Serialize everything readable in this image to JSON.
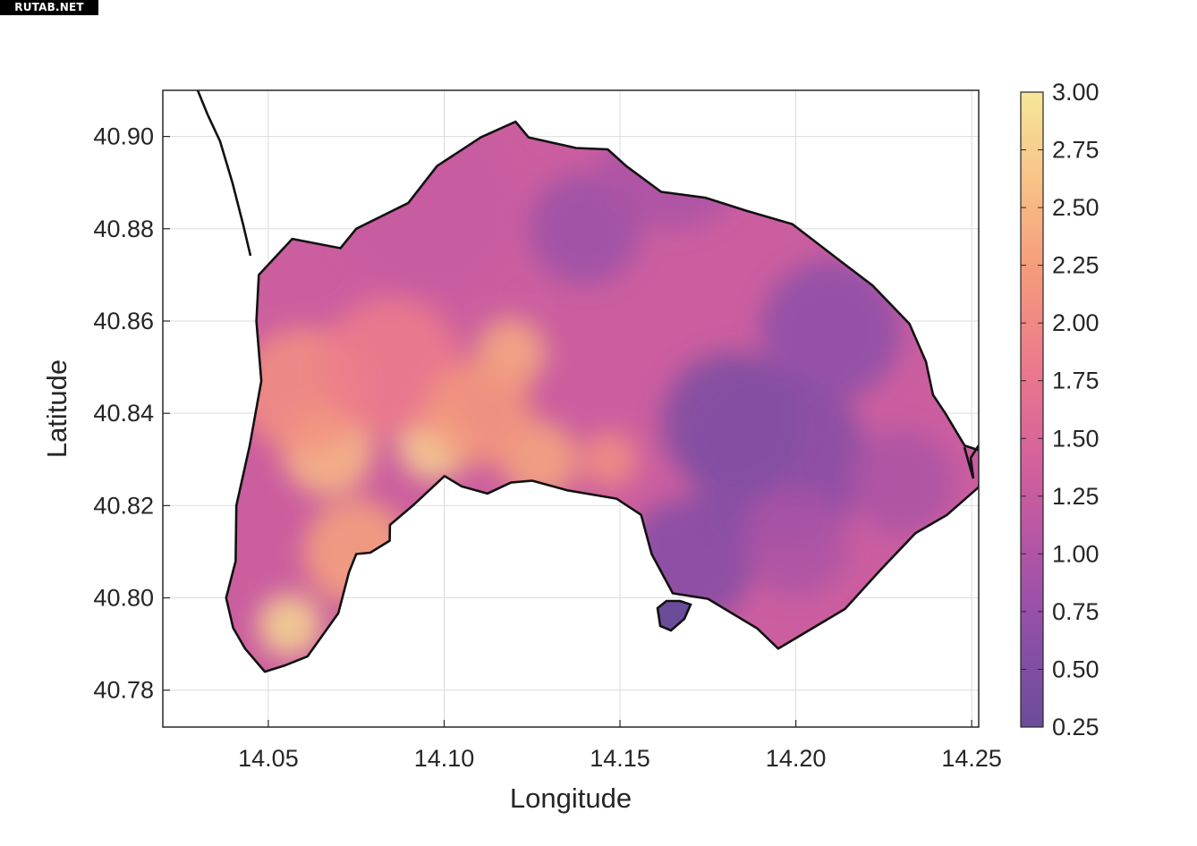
{
  "watermark": "RUTAB.NET",
  "chart_data": {
    "type": "heatmap",
    "title": "",
    "xlabel": "Longitude",
    "ylabel": "Latitude",
    "xlim": [
      14.02,
      14.252
    ],
    "ylim": [
      40.772,
      40.91
    ],
    "xticks": [
      14.05,
      14.1,
      14.15,
      14.2,
      14.25
    ],
    "xtick_labels": [
      "14.05",
      "14.10",
      "14.15",
      "14.20",
      "14.25"
    ],
    "yticks": [
      40.78,
      40.8,
      40.82,
      40.84,
      40.86,
      40.88,
      40.9
    ],
    "ytick_labels": [
      "40.78",
      "40.80",
      "40.82",
      "40.84",
      "40.86",
      "40.88",
      "40.90"
    ],
    "grid": true,
    "colorbar": {
      "min": 0.25,
      "max": 3.0,
      "ticks": [
        0.25,
        0.5,
        0.75,
        1.0,
        1.25,
        1.5,
        1.75,
        2.0,
        2.25,
        2.5,
        2.75,
        3.0
      ],
      "tick_labels": [
        "0.25",
        "0.50",
        "0.75",
        "1.00",
        "1.25",
        "1.50",
        "1.75",
        "2.00",
        "2.25",
        "2.50",
        "2.75",
        "3.00"
      ],
      "colormap": [
        "#6b4c9a",
        "#8c4fa8",
        "#b455a6",
        "#d6629b",
        "#ec7a8c",
        "#f59a7c",
        "#f8c186",
        "#f5e79a"
      ]
    },
    "boundary": [
      [
        14.0568,
        40.8778
      ],
      [
        14.0705,
        40.8758
      ],
      [
        14.075,
        40.88
      ],
      [
        14.0898,
        40.8856
      ],
      [
        14.098,
        40.8936
      ],
      [
        14.1104,
        40.8998
      ],
      [
        14.1203,
        40.9032
      ],
      [
        14.124,
        40.8998
      ],
      [
        14.1375,
        40.8975
      ],
      [
        14.1465,
        40.8972
      ],
      [
        14.1519,
        40.8935
      ],
      [
        14.1617,
        40.888
      ],
      [
        14.1744,
        40.8867
      ],
      [
        14.186,
        40.8839
      ],
      [
        14.199,
        40.881
      ],
      [
        14.213,
        40.8728
      ],
      [
        14.2218,
        40.8677
      ],
      [
        14.2323,
        40.8594
      ],
      [
        14.237,
        40.8512
      ],
      [
        14.239,
        40.844
      ],
      [
        14.2425,
        40.84
      ],
      [
        14.248,
        40.833
      ],
      [
        14.2537,
        40.8316
      ],
      [
        14.252,
        40.824
      ],
      [
        14.243,
        40.818
      ],
      [
        14.234,
        40.814
      ],
      [
        14.224,
        40.806
      ],
      [
        14.214,
        40.7976
      ],
      [
        14.195,
        40.789
      ],
      [
        14.189,
        40.7934
      ],
      [
        14.175,
        40.7998
      ],
      [
        14.165,
        40.801
      ],
      [
        14.159,
        40.8095
      ],
      [
        14.156,
        40.818
      ],
      [
        14.149,
        40.8215
      ],
      [
        14.135,
        40.8233
      ],
      [
        14.125,
        40.8254
      ],
      [
        14.119,
        40.825
      ],
      [
        14.1123,
        40.8226
      ],
      [
        14.1049,
        40.8242
      ],
      [
        14.1001,
        40.8264
      ],
      [
        14.0911,
        40.82
      ],
      [
        14.0846,
        40.8158
      ],
      [
        14.0845,
        40.8124
      ],
      [
        14.079,
        40.8098
      ],
      [
        14.075,
        40.8095
      ],
      [
        14.0729,
        40.8055
      ],
      [
        14.0699,
        40.7967
      ],
      [
        14.0611,
        40.7873
      ],
      [
        14.0545,
        40.7853
      ],
      [
        14.049,
        40.784
      ],
      [
        14.0434,
        40.789
      ],
      [
        14.04,
        40.7935
      ],
      [
        14.038,
        40.8
      ],
      [
        14.0407,
        40.808
      ],
      [
        14.0409,
        40.82
      ],
      [
        14.0447,
        40.833
      ],
      [
        14.048,
        40.847
      ],
      [
        14.0466,
        40.86
      ],
      [
        14.0473,
        40.87
      ]
    ],
    "blobs": [
      {
        "lon": 14.056,
        "lat": 40.794,
        "value": 2.85,
        "radius": 0.009
      },
      {
        "lon": 14.097,
        "lat": 40.833,
        "value": 2.8,
        "radius": 0.01
      },
      {
        "lon": 14.067,
        "lat": 40.832,
        "value": 2.55,
        "radius": 0.013
      },
      {
        "lon": 14.119,
        "lat": 40.853,
        "value": 2.4,
        "radius": 0.01
      },
      {
        "lon": 14.127,
        "lat": 40.83,
        "value": 2.35,
        "radius": 0.011
      },
      {
        "lon": 14.147,
        "lat": 40.83,
        "value": 2.1,
        "radius": 0.008
      },
      {
        "lon": 14.075,
        "lat": 40.81,
        "value": 2.3,
        "radius": 0.015
      },
      {
        "lon": 14.06,
        "lat": 40.845,
        "value": 2.1,
        "radius": 0.018
      },
      {
        "lon": 14.085,
        "lat": 40.85,
        "value": 1.85,
        "radius": 0.02
      },
      {
        "lon": 14.11,
        "lat": 40.84,
        "value": 2.2,
        "radius": 0.015
      },
      {
        "lon": 14.14,
        "lat": 40.88,
        "value": 0.8,
        "radius": 0.016
      },
      {
        "lon": 14.165,
        "lat": 40.895,
        "value": 0.95,
        "radius": 0.02
      },
      {
        "lon": 14.182,
        "lat": 40.838,
        "value": 0.45,
        "radius": 0.02
      },
      {
        "lon": 14.195,
        "lat": 40.83,
        "value": 0.55,
        "radius": 0.025
      },
      {
        "lon": 14.21,
        "lat": 40.858,
        "value": 0.65,
        "radius": 0.02
      },
      {
        "lon": 14.17,
        "lat": 40.808,
        "value": 0.55,
        "radius": 0.018
      },
      {
        "lon": 14.2,
        "lat": 40.812,
        "value": 0.95,
        "radius": 0.015
      },
      {
        "lon": 14.23,
        "lat": 40.825,
        "value": 0.95,
        "radius": 0.015
      },
      {
        "lon": 14.095,
        "lat": 40.885,
        "value": 1.25,
        "radius": 0.025
      }
    ]
  }
}
